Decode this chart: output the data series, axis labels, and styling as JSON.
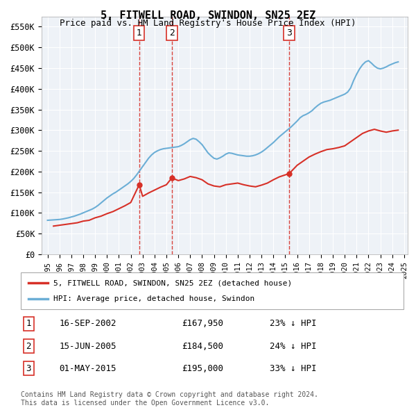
{
  "title": "5, FITWELL ROAD, SWINDON, SN25 2EZ",
  "subtitle": "Price paid vs. HM Land Registry's House Price Index (HPI)",
  "ylabel": "",
  "background_color": "#ffffff",
  "plot_bg_color": "#eef2f7",
  "grid_color": "#ffffff",
  "ylim": [
    0,
    575000
  ],
  "yticks": [
    0,
    50000,
    100000,
    150000,
    200000,
    250000,
    300000,
    350000,
    400000,
    450000,
    500000,
    550000
  ],
  "ytick_labels": [
    "£0",
    "£50K",
    "£100K",
    "£150K",
    "£200K",
    "£250K",
    "£300K",
    "£350K",
    "£400K",
    "£450K",
    "£500K",
    "£550K"
  ],
  "hpi_color": "#6baed6",
  "price_color": "#d73027",
  "marker_color": "#d73027",
  "vline_color": "#d73027",
  "transactions": [
    {
      "num": 1,
      "date": "16-SEP-2002",
      "price": 167950,
      "pct": "23%",
      "x": 2002.71
    },
    {
      "num": 2,
      "date": "15-JUN-2005",
      "price": 184500,
      "pct": "24%",
      "x": 2005.46
    },
    {
      "num": 3,
      "date": "01-MAY-2015",
      "price": 195000,
      "pct": "33%",
      "x": 2015.33
    }
  ],
  "legend_entries": [
    {
      "label": "5, FITWELL ROAD, SWINDON, SN25 2EZ (detached house)",
      "color": "#d73027"
    },
    {
      "label": "HPI: Average price, detached house, Swindon",
      "color": "#6baed6"
    }
  ],
  "footnote": "Contains HM Land Registry data © Crown copyright and database right 2024.\nThis data is licensed under the Open Government Licence v3.0.",
  "hpi_years": [
    1995.0,
    1995.25,
    1995.5,
    1995.75,
    1996.0,
    1996.25,
    1996.5,
    1996.75,
    1997.0,
    1997.25,
    1997.5,
    1997.75,
    1998.0,
    1998.25,
    1998.5,
    1998.75,
    1999.0,
    1999.25,
    1999.5,
    1999.75,
    2000.0,
    2000.25,
    2000.5,
    2000.75,
    2001.0,
    2001.25,
    2001.5,
    2001.75,
    2002.0,
    2002.25,
    2002.5,
    2002.75,
    2003.0,
    2003.25,
    2003.5,
    2003.75,
    2004.0,
    2004.25,
    2004.5,
    2004.75,
    2005.0,
    2005.25,
    2005.5,
    2005.75,
    2006.0,
    2006.25,
    2006.5,
    2006.75,
    2007.0,
    2007.25,
    2007.5,
    2007.75,
    2008.0,
    2008.25,
    2008.5,
    2008.75,
    2009.0,
    2009.25,
    2009.5,
    2009.75,
    2010.0,
    2010.25,
    2010.5,
    2010.75,
    2011.0,
    2011.25,
    2011.5,
    2011.75,
    2012.0,
    2012.25,
    2012.5,
    2012.75,
    2013.0,
    2013.25,
    2013.5,
    2013.75,
    2014.0,
    2014.25,
    2014.5,
    2014.75,
    2015.0,
    2015.25,
    2015.5,
    2015.75,
    2016.0,
    2016.25,
    2016.5,
    2016.75,
    2017.0,
    2017.25,
    2017.5,
    2017.75,
    2018.0,
    2018.25,
    2018.5,
    2018.75,
    2019.0,
    2019.25,
    2019.5,
    2019.75,
    2020.0,
    2020.25,
    2020.5,
    2020.75,
    2021.0,
    2021.25,
    2021.5,
    2021.75,
    2022.0,
    2022.25,
    2022.5,
    2022.75,
    2023.0,
    2023.25,
    2023.5,
    2023.75,
    2024.0,
    2024.25,
    2024.5
  ],
  "hpi_values": [
    82000,
    82500,
    83000,
    83500,
    84000,
    85000,
    86500,
    88000,
    90000,
    92000,
    94500,
    97000,
    100000,
    103000,
    106000,
    109000,
    113000,
    118000,
    124000,
    130000,
    136000,
    141000,
    146000,
    150000,
    155000,
    160000,
    165000,
    170000,
    176000,
    183000,
    192000,
    202000,
    212000,
    222000,
    232000,
    240000,
    246000,
    250000,
    253000,
    255000,
    256000,
    257000,
    258000,
    259000,
    260000,
    263000,
    267000,
    272000,
    277000,
    280000,
    278000,
    272000,
    265000,
    255000,
    245000,
    238000,
    232000,
    230000,
    233000,
    237000,
    242000,
    245000,
    244000,
    242000,
    240000,
    239000,
    238000,
    237000,
    237000,
    238000,
    240000,
    243000,
    247000,
    252000,
    258000,
    264000,
    270000,
    277000,
    284000,
    290000,
    296000,
    302000,
    308000,
    315000,
    322000,
    330000,
    335000,
    338000,
    342000,
    347000,
    354000,
    360000,
    365000,
    368000,
    370000,
    372000,
    375000,
    378000,
    381000,
    384000,
    387000,
    392000,
    402000,
    420000,
    435000,
    448000,
    458000,
    465000,
    468000,
    462000,
    455000,
    450000,
    448000,
    450000,
    453000,
    457000,
    460000,
    463000,
    465000
  ],
  "price_years": [
    1995.5,
    1996.5,
    1997.5,
    1998.0,
    1998.5,
    1999.0,
    1999.5,
    2000.0,
    2000.5,
    2001.0,
    2001.5,
    2002.0,
    2002.71,
    2003.0,
    2003.5,
    2004.0,
    2004.5,
    2005.0,
    2005.46,
    2006.0,
    2006.5,
    2007.0,
    2007.5,
    2008.0,
    2008.5,
    2009.0,
    2009.5,
    2010.0,
    2010.5,
    2011.0,
    2011.5,
    2012.0,
    2012.5,
    2013.0,
    2013.5,
    2014.0,
    2014.5,
    2015.33,
    2016.0,
    2016.5,
    2017.0,
    2017.5,
    2018.0,
    2018.5,
    2019.0,
    2019.5,
    2020.0,
    2020.5,
    2021.0,
    2021.5,
    2022.0,
    2022.5,
    2023.0,
    2023.5,
    2024.0,
    2024.5
  ],
  "price_values": [
    68000,
    72000,
    76000,
    80000,
    82000,
    88000,
    92000,
    98000,
    103000,
    110000,
    117000,
    125000,
    167950,
    140000,
    148000,
    155000,
    162000,
    168000,
    184500,
    178000,
    182000,
    188000,
    185000,
    180000,
    170000,
    165000,
    163000,
    168000,
    170000,
    172000,
    168000,
    165000,
    163000,
    167000,
    172000,
    180000,
    187000,
    195000,
    215000,
    225000,
    235000,
    242000,
    248000,
    253000,
    255000,
    258000,
    262000,
    272000,
    282000,
    292000,
    298000,
    302000,
    298000,
    295000,
    298000,
    300000
  ]
}
